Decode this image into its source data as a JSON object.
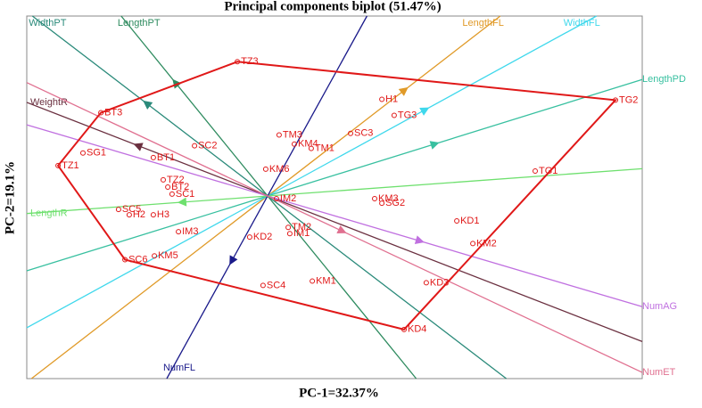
{
  "chart_data": {
    "type": "biplot",
    "title": "Principal components biplot (51.47%)",
    "x_label": "PC-1=32.37%",
    "y_label": "PC-2=19.1%",
    "xlim": [
      -9,
      14
    ],
    "ylim": [
      -6.8,
      6.7
    ],
    "point_color": "#e01818",
    "hull_color": "#e01818",
    "points": [
      {
        "label": "TZ3",
        "x": -1.13,
        "y": 5.0
      },
      {
        "label": "H1",
        "x": 4.27,
        "y": 3.6
      },
      {
        "label": "TG3",
        "x": 4.73,
        "y": 3.0
      },
      {
        "label": "TG2",
        "x": 13.0,
        "y": 3.57
      },
      {
        "label": "SC3",
        "x": 3.1,
        "y": 2.33
      },
      {
        "label": "TM3",
        "x": 0.43,
        "y": 2.27
      },
      {
        "label": "KM4",
        "x": 1.0,
        "y": 1.93
      },
      {
        "label": "TM1",
        "x": 1.63,
        "y": 1.77
      },
      {
        "label": "BT3",
        "x": -6.23,
        "y": 3.1
      },
      {
        "label": "SG1",
        "x": -6.9,
        "y": 1.6
      },
      {
        "label": "SC2",
        "x": -2.73,
        "y": 1.87
      },
      {
        "label": "BT1",
        "x": -4.27,
        "y": 1.43
      },
      {
        "label": "KM6",
        "x": -0.07,
        "y": 1.0
      },
      {
        "label": "TZ1",
        "x": -7.83,
        "y": 1.13
      },
      {
        "label": "TG1",
        "x": 10.0,
        "y": 0.93
      },
      {
        "label": "TZ2",
        "x": -3.9,
        "y": 0.6
      },
      {
        "label": "BT2",
        "x": -3.73,
        "y": 0.33
      },
      {
        "label": "SC1",
        "x": -3.57,
        "y": 0.07
      },
      {
        "label": "IM2",
        "x": 0.33,
        "y": -0.1
      },
      {
        "label": "KM3",
        "x": 4.0,
        "y": -0.1
      },
      {
        "label": "SG2",
        "x": 4.27,
        "y": -0.27
      },
      {
        "label": "SC5",
        "x": -5.57,
        "y": -0.5
      },
      {
        "label": "H2",
        "x": -5.17,
        "y": -0.7
      },
      {
        "label": "H3",
        "x": -4.27,
        "y": -0.7
      },
      {
        "label": "KD1",
        "x": 7.07,
        "y": -0.93
      },
      {
        "label": "TM2",
        "x": 0.77,
        "y": -1.17
      },
      {
        "label": "IM1",
        "x": 0.83,
        "y": -1.4
      },
      {
        "label": "IM3",
        "x": -3.33,
        "y": -1.33
      },
      {
        "label": "KD2",
        "x": -0.67,
        "y": -1.53
      },
      {
        "label": "KM2",
        "x": 7.67,
        "y": -1.77
      },
      {
        "label": "SC6",
        "x": -5.33,
        "y": -2.37
      },
      {
        "label": "KM5",
        "x": -4.23,
        "y": -2.23
      },
      {
        "label": "SC4",
        "x": -0.17,
        "y": -3.33
      },
      {
        "label": "KM1",
        "x": 1.67,
        "y": -3.17
      },
      {
        "label": "KD3",
        "x": 5.93,
        "y": -3.23
      },
      {
        "label": "KD4",
        "x": 5.1,
        "y": -4.97
      }
    ],
    "hull": [
      "TZ3",
      "TG2",
      "KD4",
      "SC6",
      "TZ1",
      "BT3"
    ],
    "vectors": [
      {
        "name": "WidthPT",
        "color": "#2a8a7a",
        "x": -4.5,
        "y": 3.43
      },
      {
        "name": "LengthPT",
        "color": "#2e8b5f",
        "x": -3.43,
        "y": 4.2
      },
      {
        "name": "LengthFL",
        "color": "#e09a28",
        "x": 5.1,
        "y": 3.93
      },
      {
        "name": "WidthFL",
        "color": "#3fd8ec",
        "x": 5.87,
        "y": 3.2
      },
      {
        "name": "LengthPD",
        "color": "#38c0a0",
        "x": 6.23,
        "y": 1.93
      },
      {
        "name": "NumFL",
        "color": "#1a1a8a",
        "x": -1.33,
        "y": -2.4
      },
      {
        "name": "LengthR",
        "color": "#6ee06e",
        "x": -3.17,
        "y": -0.23
      },
      {
        "name": "WeightR",
        "color": "#6b3040",
        "x": -4.83,
        "y": 1.87
      },
      {
        "name": "NumAG",
        "color": "#c070e0",
        "x": 5.67,
        "y": -1.67
      },
      {
        "name": "NumET",
        "color": "#e07090",
        "x": 2.77,
        "y": -1.3
      }
    ]
  }
}
